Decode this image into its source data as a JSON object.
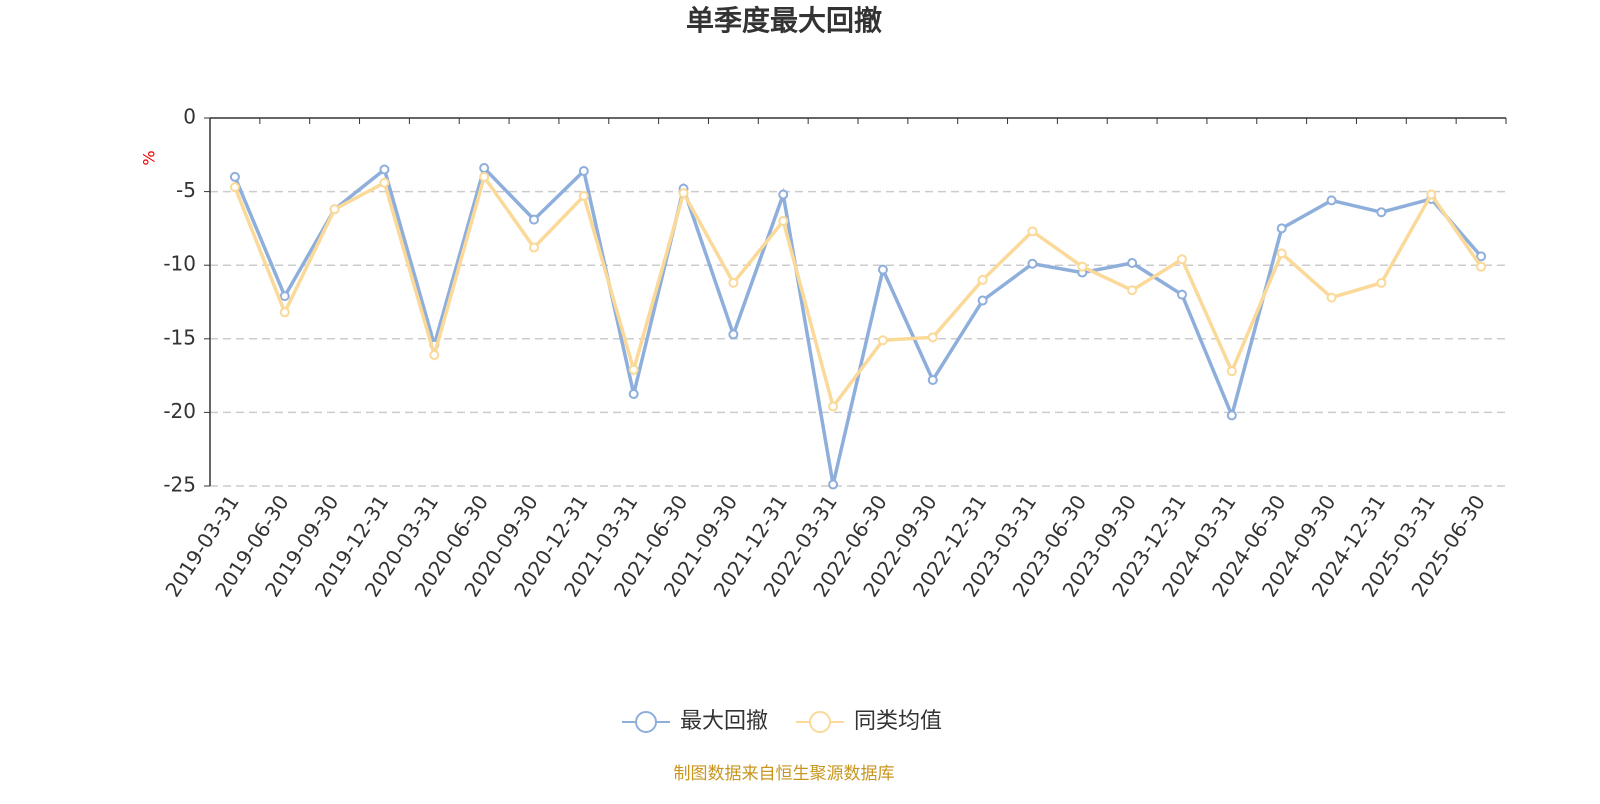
{
  "chart_data": {
    "type": "line",
    "title": "单季度最大回撤",
    "y_label": "%",
    "source": "制图数据来自恒生聚源数据库",
    "categories": [
      "2019-03-31",
      "2019-06-30",
      "2019-09-30",
      "2019-12-31",
      "2020-03-31",
      "2020-06-30",
      "2020-09-30",
      "2020-12-31",
      "2021-03-31",
      "2021-06-30",
      "2021-09-30",
      "2021-12-31",
      "2022-03-31",
      "2022-06-30",
      "2022-09-30",
      "2022-12-31",
      "2023-03-31",
      "2023-06-30",
      "2023-09-30",
      "2023-12-31",
      "2024-03-31",
      "2024-06-30",
      "2024-09-30",
      "2024-12-31",
      "2025-03-31",
      "2025-06-30"
    ],
    "series": [
      {
        "name": "最大回撤",
        "color": "#8eaedb",
        "values": [
          -4.0,
          -12.1,
          -6.2,
          -3.5,
          -15.4,
          -3.4,
          -6.9,
          -3.6,
          -18.75,
          -4.8,
          -14.7,
          -5.2,
          -24.9,
          -10.3,
          -17.8,
          -12.4,
          -9.9,
          -10.5,
          -9.85,
          -12.0,
          -20.2,
          -7.5,
          -5.6,
          -6.4,
          -5.5,
          -9.4
        ]
      },
      {
        "name": "同类均值",
        "color": "#fad999",
        "values": [
          -4.7,
          -13.2,
          -6.2,
          -4.4,
          -16.1,
          -4.0,
          -8.8,
          -5.3,
          -17.1,
          -5.1,
          -11.2,
          -7.0,
          -19.6,
          -15.1,
          -14.9,
          -11.0,
          -7.7,
          -10.1,
          -11.7,
          -9.6,
          -17.2,
          -9.2,
          -12.2,
          -11.2,
          -5.2,
          -10.1
        ]
      }
    ],
    "ylim": [
      -25,
      0
    ],
    "yticks": [
      0,
      -5,
      -10,
      -15,
      -20,
      -25
    ],
    "grid": true
  }
}
